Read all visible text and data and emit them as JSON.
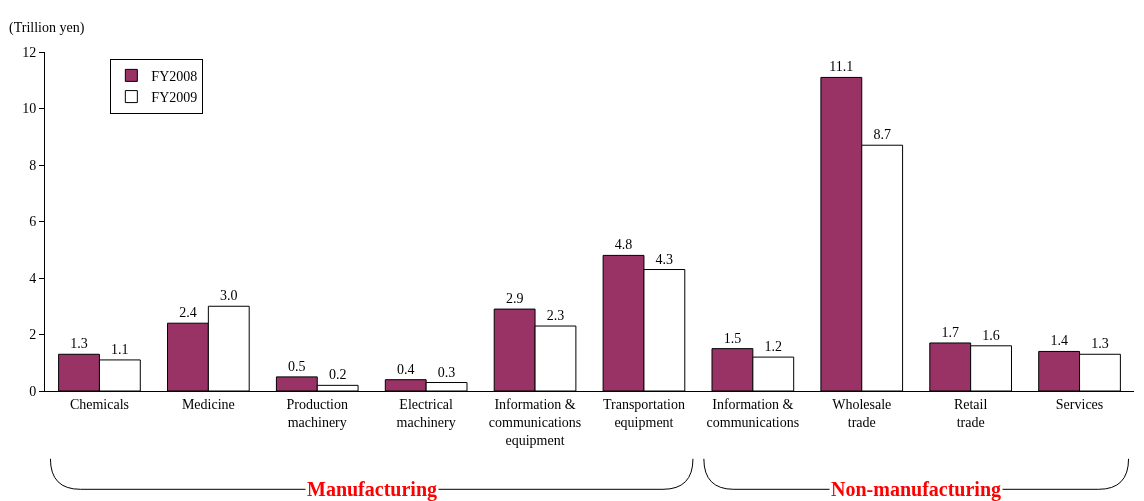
{
  "chart_data": {
    "type": "bar",
    "ylabel": "(Trillion yen)",
    "categories": [
      "Chemicals",
      "Medicine",
      "Production\nmachinery",
      "Electrical\nmachinery",
      "Information &\ncommunications\nequipment",
      "Transportation\nequipment",
      "Information &\ncommunications",
      "Wholesale\ntrade",
      "Retail\ntrade",
      "Services"
    ],
    "series": [
      {
        "name": "FY2008",
        "color": "#993366",
        "values": [
          1.3,
          2.4,
          0.5,
          0.4,
          2.9,
          4.8,
          1.5,
          11.1,
          1.7,
          1.4
        ],
        "value_labels": [
          "1.3",
          "2.4",
          "0.5",
          "0.4",
          "2.9",
          "4.8",
          "1.5",
          "11.1",
          "1.7",
          "1.4"
        ]
      },
      {
        "name": "FY2009",
        "color": "#ffffff",
        "values": [
          1.1,
          3.0,
          0.2,
          0.3,
          2.3,
          4.3,
          1.2,
          8.7,
          1.6,
          1.3
        ],
        "value_labels": [
          "1.1",
          "3.0",
          "0.2",
          "0.3",
          "2.3",
          "4.3",
          "1.2",
          "8.7",
          "1.6",
          "1.3"
        ]
      }
    ],
    "ylim": [
      0,
      12
    ],
    "yticks": [
      0,
      2,
      4,
      6,
      8,
      10,
      12
    ],
    "grid": false,
    "legend": "top left",
    "annotations": [
      "Manufacturing",
      "Non-manufacturing"
    ]
  }
}
